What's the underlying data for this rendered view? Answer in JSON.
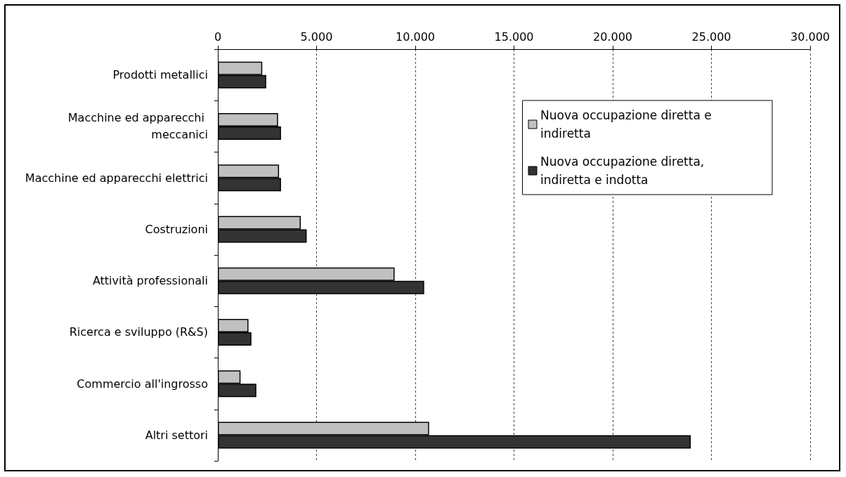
{
  "chart_data": {
    "type": "bar",
    "orientation": "horizontal",
    "categories": [
      "Prodotti metallici",
      "Macchine ed apparecchi meccanici",
      "Macchine ed apparecchi elettrici",
      "Costruzioni",
      "Attività professionali",
      "Ricerca e sviluppo (R&S)",
      "Commercio all'ingrosso",
      "Altri settori"
    ],
    "series": [
      {
        "name": "Nuova occupazione diretta e indiretta",
        "color": "#c0c0c0",
        "values": [
          2250,
          3050,
          3100,
          4200,
          8950,
          1550,
          1150,
          10700
        ]
      },
      {
        "name": "Nuova occupazione diretta, indiretta e indotta",
        "color": "#333333",
        "values": [
          2450,
          3200,
          3200,
          4500,
          10450,
          1700,
          1950,
          23950
        ]
      }
    ],
    "xlim": [
      0,
      30000
    ],
    "xticks": [
      0,
      {
        "value": 5000,
        "label": "5.000"
      },
      {
        "value": 10000,
        "label": "10.000"
      },
      {
        "value": 15000,
        "label": "15.000"
      },
      {
        "value": 20000,
        "label": "20.000"
      },
      {
        "value": 25000,
        "label": "25.000"
      },
      {
        "value": 30000,
        "label": "30.000"
      }
    ],
    "grid": "x",
    "legend": "top right"
  }
}
